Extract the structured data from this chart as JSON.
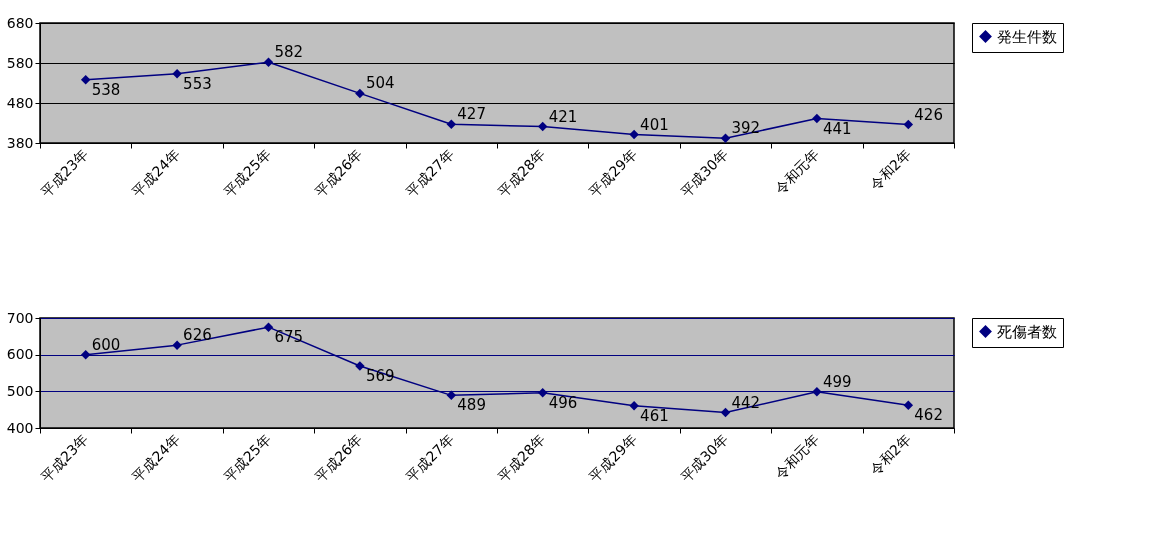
{
  "chart_data": [
    {
      "type": "line",
      "categories": [
        "平成23年",
        "平成24年",
        "平成25年",
        "平成26年",
        "平成27年",
        "平成28年",
        "平成29年",
        "平成30年",
        "令和元年",
        "令和2年"
      ],
      "series": [
        {
          "name": "発生件数",
          "color": "#000080",
          "values": [
            538,
            553,
            582,
            504,
            427,
            421,
            401,
            392,
            441,
            426
          ]
        }
      ],
      "ylim": [
        380,
        680
      ],
      "yticks": [
        380,
        480,
        580,
        680
      ],
      "grid": "y",
      "legend": "right",
      "marker": "diamond",
      "line_style": "solid",
      "data_labels": true
    },
    {
      "type": "line",
      "categories": [
        "平成23年",
        "平成24年",
        "平成25年",
        "平成26年",
        "平成27年",
        "平成28年",
        "平成29年",
        "平成30年",
        "令和元年",
        "令和2年"
      ],
      "series": [
        {
          "name": "死傷者数",
          "color": "#000080",
          "values": [
            600,
            626,
            675,
            569,
            489,
            496,
            461,
            442,
            499,
            462
          ]
        }
      ],
      "ylim": [
        400,
        700
      ],
      "yticks": [
        400,
        500,
        600,
        700
      ],
      "grid": "y",
      "legend": "right",
      "marker": "diamond",
      "line_style": "solid",
      "data_labels": true
    }
  ]
}
